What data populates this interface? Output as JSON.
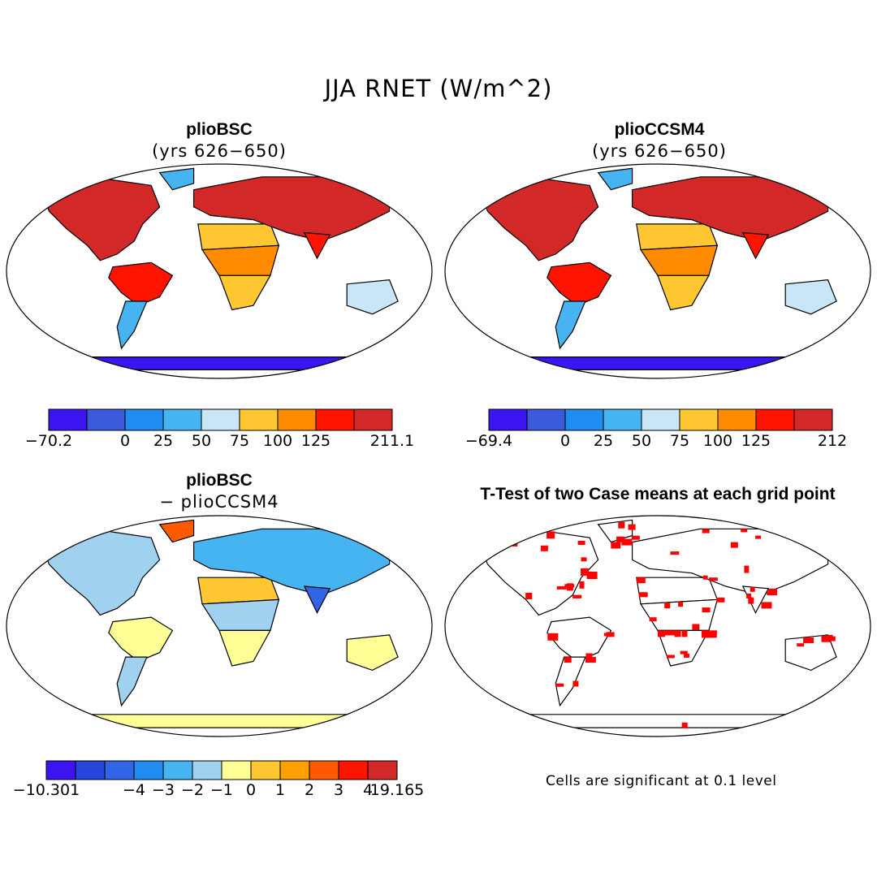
{
  "figure": {
    "title": "JJA RNET (W/m^2)",
    "note": "Cells are significant at 0.1 level"
  },
  "panels": {
    "p1": {
      "title": "plioBSC",
      "subtitle": "(yrs 626−650)"
    },
    "p2": {
      "title": "plioCCSM4",
      "subtitle": "(yrs 626−650)"
    },
    "p3": {
      "title": "plioBSC",
      "subtitle": "− plioCCSM4"
    },
    "p4": {
      "title": "T-Test of two Case means at each grid point"
    }
  },
  "colorbars": {
    "cb1": {
      "colors": [
        "#3c14f0",
        "#3c5adc",
        "#1e8cf0",
        "#46b4f0",
        "#c8e6f5",
        "#ffc832",
        "#ff8c00",
        "#ff1400",
        "#d22828"
      ],
      "labels": [
        "−70.2",
        "0",
        "25",
        "50",
        "75",
        "100",
        "125",
        "211.1"
      ]
    },
    "cb2": {
      "colors": [
        "#3c14f0",
        "#3c5adc",
        "#1e8cf0",
        "#46b4f0",
        "#c8e6f5",
        "#ffc832",
        "#ff8c00",
        "#ff1400",
        "#d22828"
      ],
      "labels": [
        "−69.4",
        "0",
        "25",
        "50",
        "75",
        "100",
        "125",
        "212"
      ]
    },
    "cb3": {
      "colors": [
        "#3c14f0",
        "#2846dc",
        "#3264e6",
        "#1e8cf0",
        "#46b4f0",
        "#a0d2f0",
        "#ffff96",
        "#ffc832",
        "#ffa000",
        "#ff5a00",
        "#ff1400",
        "#d22828"
      ],
      "labels": [
        "−10.301",
        "−4",
        "−3",
        "−2",
        "−1",
        "0",
        "1",
        "2",
        "3",
        "4",
        "19.165"
      ]
    }
  },
  "map_fills": {
    "p1": {
      "ocean": "#ffffff",
      "north_america": "#d22828",
      "greenland": "#46b4f0",
      "south_america": "#ff1400",
      "south_america_south": "#46b4f0",
      "africa_north": "#ffc832",
      "africa_central": "#ff8c00",
      "africa_south": "#ffc832",
      "eurasia": "#d22828",
      "india": "#ff1400",
      "australia": "#c8e6f5",
      "antarctica": "#3c14f0"
    },
    "p2": {
      "ocean": "#ffffff",
      "north_america": "#d22828",
      "greenland": "#46b4f0",
      "south_america": "#ff1400",
      "south_america_south": "#46b4f0",
      "africa_north": "#ffc832",
      "africa_central": "#ff8c00",
      "africa_south": "#ffc832",
      "eurasia": "#d22828",
      "india": "#ff1400",
      "australia": "#c8e6f5",
      "antarctica": "#3c14f0"
    },
    "p3": {
      "ocean": "#ffffff",
      "north_america": "#a0d2f0",
      "greenland": "#ff5a00",
      "south_america": "#ffff96",
      "south_america_south": "#a0d2f0",
      "africa_north": "#ffc832",
      "africa_central": "#a0d2f0",
      "africa_south": "#ffff96",
      "eurasia": "#46b4f0",
      "india": "#3264e6",
      "australia": "#ffff96",
      "antarctica": "#ffff96"
    },
    "p4": {
      "ocean": "#ffffff",
      "north_america": "#ffffff",
      "greenland": "#ffffff",
      "south_america": "#ffffff",
      "south_america_south": "#ffffff",
      "africa_north": "#ffffff",
      "africa_central": "#ffffff",
      "africa_south": "#ffffff",
      "eurasia": "#ffffff",
      "india": "#ffffff",
      "australia": "#ffffff",
      "antarctica": "#ffffff",
      "significant": "#ff0000"
    }
  }
}
